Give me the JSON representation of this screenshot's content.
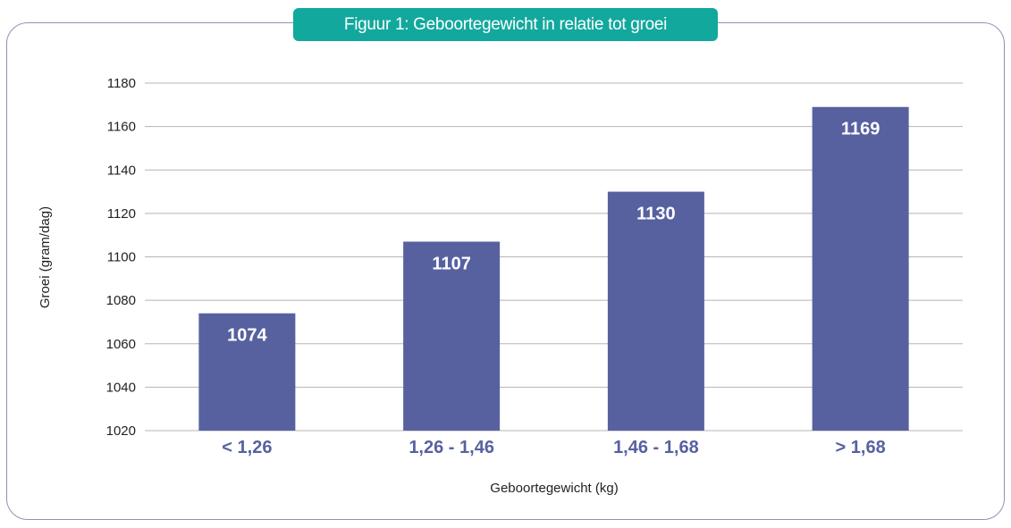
{
  "chart_data": {
    "type": "bar",
    "title": "Figuur 1: Geboortegewicht in relatie tot groei",
    "xlabel": "Geboortegewicht (kg)",
    "ylabel": "Groei (gram/dag)",
    "categories": [
      "< 1,26",
      "1,26 - 1,46",
      "1,46 - 1,68",
      "> 1,68"
    ],
    "values": [
      1074,
      1107,
      1130,
      1169
    ],
    "value_labels": [
      "1074",
      "1107",
      "1130",
      "1169"
    ],
    "ylim": [
      1020,
      1180
    ],
    "yticks": [
      "1020",
      "1040",
      "1060",
      "1080",
      "1100",
      "1120",
      "1140",
      "1160",
      "1180"
    ],
    "grid": true,
    "colors": {
      "bar": "#5761a0",
      "category_label": "#5761a0",
      "title_background": "#12a89d",
      "grid": "#b5b5b5",
      "frame": "#8e93b6"
    }
  }
}
